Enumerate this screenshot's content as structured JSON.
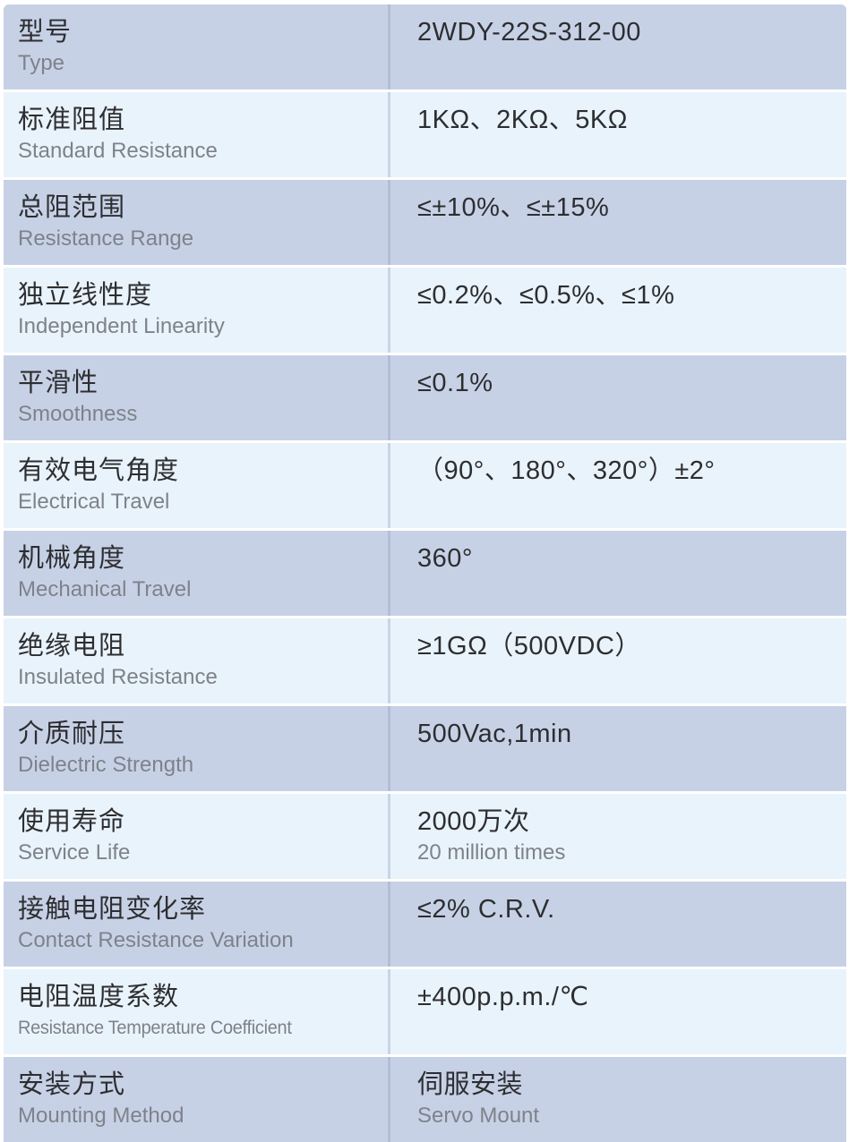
{
  "colors": {
    "row_dark": "#c7d1e6",
    "row_light": "#e9f3fb",
    "divider": "#7d91b94d",
    "text_primary": "#2d2e31",
    "text_secondary": "#7e828a",
    "page_bg": "#ffffff"
  },
  "table": {
    "columns": [
      "parameter",
      "value"
    ],
    "rows": [
      {
        "label_zh": "型号",
        "label_en": "Type",
        "value": "2WDY-22S-312-00"
      },
      {
        "label_zh": "标准阻值",
        "label_en": "Standard Resistance",
        "value": "1KΩ、2KΩ、5KΩ"
      },
      {
        "label_zh": "总阻范围",
        "label_en": "Resistance Range",
        "value": "≤±10%、≤±15%"
      },
      {
        "label_zh": "独立线性度",
        "label_en": "Independent Linearity",
        "value": "≤0.2%、≤0.5%、≤1%"
      },
      {
        "label_zh": "平滑性",
        "label_en": "Smoothness",
        "value": "≤0.1%"
      },
      {
        "label_zh": "有效电气角度",
        "label_en": "Electrical Travel",
        "value": "（90°、180°、320°）±2°"
      },
      {
        "label_zh": "机械角度",
        "label_en": "Mechanical Travel",
        "value": "360°"
      },
      {
        "label_zh": "绝缘电阻",
        "label_en": "Insulated Resistance",
        "value": "≥1GΩ（500VDC）"
      },
      {
        "label_zh": "介质耐压",
        "label_en": "Dielectric Strength",
        "value": "500Vac,1min"
      },
      {
        "label_zh": "使用寿命",
        "label_en": "Service Life",
        "value": "2000万次",
        "value_sub": "20 million times"
      },
      {
        "label_zh": "接触电阻变化率",
        "label_en": "Contact Resistance Variation",
        "value": "≤2% C.R.V."
      },
      {
        "label_zh": "电阻温度系数",
        "label_en": "Resistance Temperature Coefficient",
        "value": "±400p.p.m./℃"
      },
      {
        "label_zh": "安装方式",
        "label_en": "Mounting Method",
        "value": "伺服安装",
        "value_sub": "Servo Mount"
      }
    ]
  }
}
